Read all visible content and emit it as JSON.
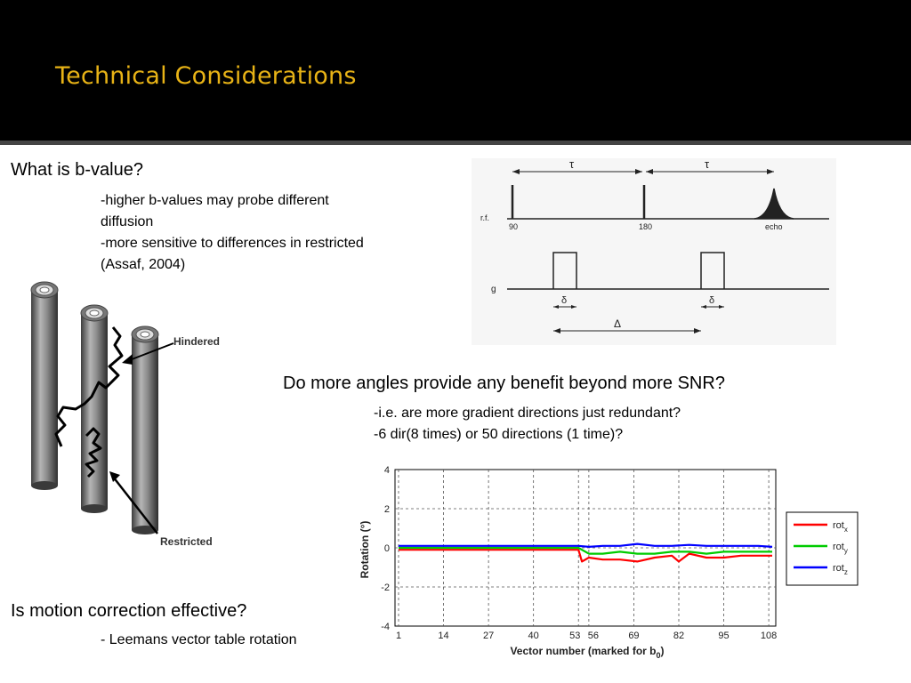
{
  "slide": {
    "title": "Technical Considerations",
    "q1": "What is b-value?",
    "q1_lines": [
      "-higher b-values may probe different",
      "diffusion",
      "-more sensitive to differences in restricted",
      "(Assaf, 2004)"
    ],
    "q2": "Do more angles provide any benefit beyond more SNR?",
    "q2_lines": [
      "-i.e. are more gradient directions just redundant?",
      "-6 dir(8 times) or 50 directions (1 time)?"
    ],
    "q3": "Is motion correction effective?",
    "q3_lines": [
      "- Leemans vector table rotation"
    ]
  },
  "cylinders": {
    "hindered_label": "Hindered",
    "restricted_label": "Restricted"
  },
  "pulse": {
    "tau1": "τ",
    "tau2": "τ",
    "rf_label": "r.f.",
    "g_label": "g",
    "p90": "90",
    "p180": "180",
    "echo": "echo",
    "delta1": "δ",
    "delta2": "δ",
    "Delta": "Δ"
  },
  "chart_data": {
    "type": "line",
    "title": "",
    "xlabel": "Vector number (marked for b0)",
    "ylabel": "Rotation (°)",
    "xlim": [
      1,
      109
    ],
    "ylim": [
      -4,
      4
    ],
    "xticks": [
      "1",
      "14",
      "27",
      "40",
      "53",
      "56",
      "69",
      "82",
      "95",
      "108"
    ],
    "yticks": [
      "4",
      "2",
      "0",
      "-2",
      "-4"
    ],
    "vlines": [
      1,
      14,
      27,
      40,
      53,
      56,
      69,
      82,
      95,
      108
    ],
    "grid": true,
    "legend_position": "right",
    "series": [
      {
        "name": "rotx",
        "color": "#ff0000",
        "x": [
          1,
          10,
          20,
          30,
          40,
          50,
          53,
          54,
          56,
          60,
          65,
          70,
          75,
          80,
          82,
          85,
          90,
          95,
          100,
          105,
          109
        ],
        "values": [
          -0.1,
          -0.1,
          -0.1,
          -0.1,
          -0.1,
          -0.1,
          -0.1,
          -0.7,
          -0.5,
          -0.6,
          -0.6,
          -0.7,
          -0.5,
          -0.4,
          -0.7,
          -0.3,
          -0.5,
          -0.5,
          -0.4,
          -0.4,
          -0.4
        ]
      },
      {
        "name": "roty",
        "color": "#00cc00",
        "x": [
          1,
          10,
          20,
          30,
          40,
          50,
          53,
          56,
          60,
          65,
          70,
          75,
          80,
          85,
          90,
          95,
          100,
          105,
          109
        ],
        "values": [
          0.0,
          0.0,
          0.0,
          0.0,
          0.0,
          0.0,
          0.0,
          -0.3,
          -0.3,
          -0.2,
          -0.3,
          -0.3,
          -0.2,
          -0.2,
          -0.3,
          -0.2,
          -0.2,
          -0.2,
          -0.2
        ]
      },
      {
        "name": "rotz",
        "color": "#0000ff",
        "x": [
          1,
          10,
          20,
          30,
          40,
          50,
          53,
          56,
          60,
          65,
          70,
          75,
          80,
          85,
          90,
          95,
          100,
          105,
          109
        ],
        "values": [
          0.1,
          0.1,
          0.1,
          0.1,
          0.1,
          0.1,
          0.1,
          0.05,
          0.1,
          0.1,
          0.2,
          0.1,
          0.1,
          0.15,
          0.1,
          0.1,
          0.1,
          0.1,
          0.05
        ]
      }
    ],
    "legend_labels": [
      {
        "base": "rot",
        "sub": "x"
      },
      {
        "base": "rot",
        "sub": "y"
      },
      {
        "base": "rot",
        "sub": "z"
      }
    ]
  }
}
